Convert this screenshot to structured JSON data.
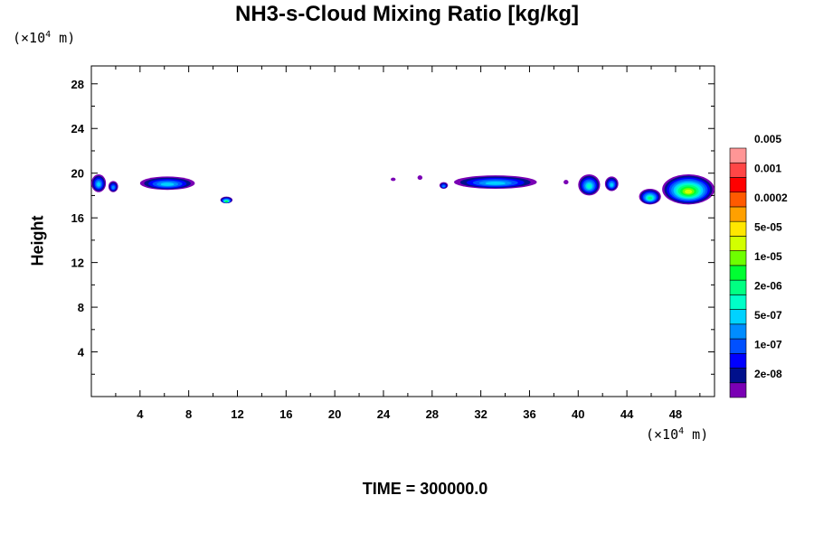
{
  "chart_data": {
    "type": "contour",
    "title": "NH3-s-Cloud Mixing Ratio [kg/kg]",
    "ylabel": "Height",
    "x_unit": {
      "prefix": "(×10",
      "exp": "4",
      "suffix": " m)"
    },
    "y_unit": {
      "prefix": "(×10",
      "exp": "4",
      "suffix": " m)"
    },
    "footer": "TIME = 300000.0",
    "xlim": [
      0,
      51.2
    ],
    "ylim": [
      0,
      29.6
    ],
    "x_ticks": [
      "4",
      "8",
      "12",
      "16",
      "20",
      "24",
      "28",
      "32",
      "36",
      "40",
      "44",
      "48"
    ],
    "y_ticks": [
      "4",
      "8",
      "12",
      "16",
      "20",
      "24",
      "28"
    ],
    "colorbar": {
      "colors": [
        "#7a00b4",
        "#00108c",
        "#0000ff",
        "#0050ff",
        "#008cff",
        "#00d2ff",
        "#00ffc8",
        "#00ff82",
        "#00ff32",
        "#6eff00",
        "#d2ff00",
        "#ffe600",
        "#ffa000",
        "#ff5a00",
        "#ff0000",
        "#ff4646",
        "#ff9696"
      ],
      "labels": [
        "2e-08",
        "1e-07",
        "5e-07",
        "2e-06",
        "1e-05",
        "5e-05",
        "0.0002",
        "0.001",
        "0.005"
      ]
    },
    "cloud_patches": [
      {
        "x": [
          0.0,
          1.2
        ],
        "y": [
          18.3,
          19.9
        ],
        "max_level": 5
      },
      {
        "x": [
          1.4,
          2.2
        ],
        "y": [
          18.3,
          19.3
        ],
        "max_level": 4
      },
      {
        "x": [
          4.0,
          8.5
        ],
        "y": [
          18.5,
          19.7
        ],
        "max_level": 5
      },
      {
        "x": [
          10.6,
          11.6
        ],
        "y": [
          17.3,
          17.9
        ],
        "max_level": 8
      },
      {
        "x": [
          24.6,
          25.0
        ],
        "y": [
          19.3,
          19.6
        ],
        "max_level": 0
      },
      {
        "x": [
          26.8,
          27.2
        ],
        "y": [
          19.4,
          19.8
        ],
        "max_level": 0
      },
      {
        "x": [
          28.6,
          29.3
        ],
        "y": [
          18.6,
          19.2
        ],
        "max_level": 4
      },
      {
        "x": [
          29.8,
          36.6
        ],
        "y": [
          18.6,
          19.8
        ],
        "max_level": 5
      },
      {
        "x": [
          38.8,
          39.2
        ],
        "y": [
          19.0,
          19.4
        ],
        "max_level": 0
      },
      {
        "x": [
          40.0,
          41.8
        ],
        "y": [
          18.0,
          19.9
        ],
        "max_level": 6
      },
      {
        "x": [
          42.2,
          43.3
        ],
        "y": [
          18.4,
          19.7
        ],
        "max_level": 5
      },
      {
        "x": [
          45.0,
          46.8
        ],
        "y": [
          17.2,
          18.6
        ],
        "max_level": 7
      },
      {
        "x": [
          46.9,
          51.2
        ],
        "y": [
          17.2,
          19.9
        ],
        "max_level": 10
      }
    ]
  }
}
